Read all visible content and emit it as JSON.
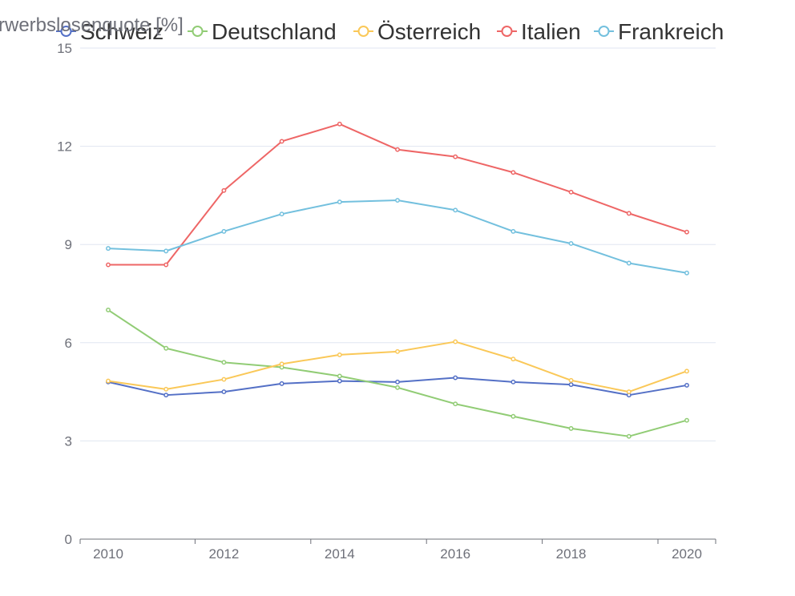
{
  "chart_data": {
    "type": "line",
    "ylabel": "Erwerbslosenquote [%]",
    "ylim": [
      0,
      15
    ],
    "yticks": [
      0,
      3,
      6,
      9,
      12,
      15
    ],
    "xticks": [
      2010,
      2012,
      2014,
      2016,
      2018,
      2020
    ],
    "xlim": [
      2010,
      2020
    ],
    "grid": true,
    "legend_position": "top",
    "x": [
      2010,
      2011,
      2012,
      2013,
      2014,
      2015,
      2016,
      2017,
      2018,
      2019,
      2020
    ],
    "series": [
      {
        "name": "Schweiz",
        "color": "#5470c6",
        "values": [
          4.8,
          4.4,
          4.5,
          4.75,
          4.83,
          4.8,
          4.93,
          4.8,
          4.72,
          4.4,
          4.7
        ]
      },
      {
        "name": "Deutschland",
        "color": "#91cc75",
        "values": [
          7.0,
          5.83,
          5.4,
          5.25,
          4.98,
          4.63,
          4.13,
          3.75,
          3.38,
          3.14,
          3.63
        ]
      },
      {
        "name": "Österreich",
        "color": "#fac858",
        "values": [
          4.83,
          4.58,
          4.88,
          5.35,
          5.63,
          5.73,
          6.03,
          5.5,
          4.85,
          4.5,
          5.13
        ]
      },
      {
        "name": "Italien",
        "color": "#ee6666",
        "values": [
          8.38,
          8.38,
          10.65,
          12.15,
          12.68,
          11.9,
          11.68,
          11.2,
          10.6,
          9.95,
          9.38
        ]
      },
      {
        "name": "Frankreich",
        "color": "#73c0de",
        "values": [
          8.88,
          8.8,
          9.4,
          9.93,
          10.3,
          10.35,
          10.05,
          9.4,
          9.03,
          8.43,
          8.13
        ]
      }
    ]
  }
}
